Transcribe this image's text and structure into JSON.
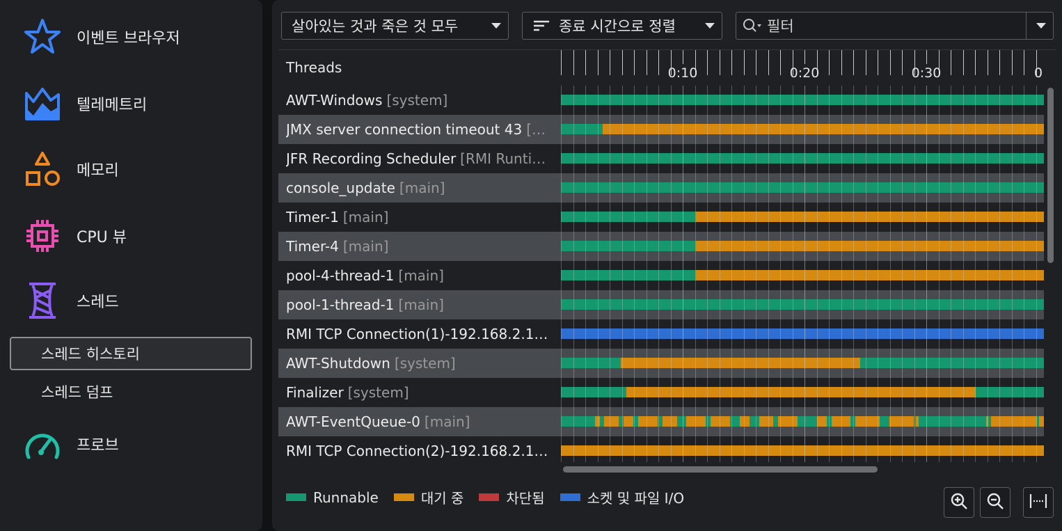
{
  "sidebar": {
    "items": [
      {
        "label": "이벤트 브라우저",
        "icon": "star-icon",
        "color": "#3b82f6"
      },
      {
        "label": "텔레메트리",
        "icon": "telemetry-icon",
        "color": "#3b82f6"
      },
      {
        "label": "메모리",
        "icon": "shapes-icon",
        "color": "#f08a1c"
      },
      {
        "label": "CPU 뷰",
        "icon": "cpu-chip-icon",
        "color": "#e94fb0"
      },
      {
        "label": "스레드",
        "icon": "thread-spool-icon",
        "color": "#8b5cf6"
      },
      {
        "label": "프로브",
        "icon": "gauge-icon",
        "color": "#20c0a8"
      }
    ],
    "sub_items": [
      {
        "label": "스레드 히스토리",
        "selected": true
      },
      {
        "label": "스레드 덤프",
        "selected": false
      }
    ]
  },
  "toolbar": {
    "state_filter": "살아있는 것과 죽은 것 모두",
    "sort": "종료 시간으로 정렬",
    "filter_placeholder": "필터"
  },
  "threads_header": "Threads",
  "timeline": {
    "tick_labels": [
      "0:10",
      "0:20",
      "0:30",
      "0"
    ],
    "tick_seconds": [
      10,
      20,
      30,
      40
    ]
  },
  "colors": {
    "runnable": "#16986e",
    "waiting": "#d68a10",
    "blocked": "#c0393b",
    "socket_io": "#2f6fd4"
  },
  "threads": [
    {
      "name": "AWT-Windows",
      "group": "[system]",
      "segments": [
        [
          "R",
          0,
          1
        ]
      ]
    },
    {
      "name": "JMX server connection timeout 43",
      "group": "[R…",
      "segments": [
        [
          "R",
          0,
          0.087
        ],
        [
          "W",
          0.087,
          1
        ]
      ]
    },
    {
      "name": "JFR Recording Scheduler",
      "group": "[RMI Runtim…",
      "segments": [
        [
          "R",
          0,
          1
        ]
      ]
    },
    {
      "name": "console_update",
      "group": "[main]",
      "segments": [
        [
          "R",
          0,
          1
        ]
      ]
    },
    {
      "name": "Timer-1",
      "group": "[main]",
      "segments": [
        [
          "R",
          0,
          0.279
        ],
        [
          "W",
          0.279,
          1
        ]
      ]
    },
    {
      "name": "Timer-4",
      "group": "[main]",
      "segments": [
        [
          "R",
          0,
          0.279
        ],
        [
          "W",
          0.279,
          1
        ]
      ]
    },
    {
      "name": "pool-4-thread-1",
      "group": "[main]",
      "segments": [
        [
          "R",
          0,
          0.279
        ],
        [
          "W",
          0.279,
          1
        ]
      ]
    },
    {
      "name": "pool-1-thread-1",
      "group": "[main]",
      "segments": [
        [
          "R",
          0,
          1
        ]
      ]
    },
    {
      "name": "RMI TCP Connection(1)-192.168.2.132 …",
      "group": "",
      "segments": [
        [
          "S",
          0,
          1
        ]
      ]
    },
    {
      "name": "AWT-Shutdown",
      "group": "[system]",
      "segments": [
        [
          "R",
          0,
          0.124
        ],
        [
          "W",
          0.124,
          0.619
        ],
        [
          "R",
          0.619,
          1
        ]
      ]
    },
    {
      "name": "Finalizer",
      "group": "[system]",
      "segments": [
        [
          "R",
          0,
          0.135
        ],
        [
          "W",
          0.135,
          0.859
        ],
        [
          "R",
          0.859,
          1
        ]
      ]
    },
    {
      "name": "AWT-EventQueue-0",
      "group": "[main]",
      "segments": [
        [
          "R",
          0,
          0.07
        ],
        [
          "W",
          0.07,
          0.08
        ],
        [
          "R",
          0.08,
          0.09
        ],
        [
          "W",
          0.09,
          0.12
        ],
        [
          "R",
          0.12,
          0.13
        ],
        [
          "W",
          0.13,
          0.15
        ],
        [
          "R",
          0.15,
          0.16
        ],
        [
          "W",
          0.16,
          0.2
        ],
        [
          "R",
          0.2,
          0.21
        ],
        [
          "W",
          0.21,
          0.24
        ],
        [
          "R",
          0.24,
          0.26
        ],
        [
          "W",
          0.26,
          0.3
        ],
        [
          "R",
          0.3,
          0.31
        ],
        [
          "W",
          0.31,
          0.35
        ],
        [
          "R",
          0.35,
          0.37
        ],
        [
          "W",
          0.37,
          0.39
        ],
        [
          "R",
          0.39,
          0.41
        ],
        [
          "W",
          0.41,
          0.44
        ],
        [
          "R",
          0.44,
          0.45
        ],
        [
          "W",
          0.45,
          0.49
        ],
        [
          "R",
          0.49,
          0.53
        ],
        [
          "W",
          0.53,
          0.55
        ],
        [
          "R",
          0.55,
          0.56
        ],
        [
          "W",
          0.56,
          0.6
        ],
        [
          "R",
          0.6,
          0.61
        ],
        [
          "W",
          0.61,
          0.66
        ],
        [
          "R",
          0.66,
          0.68
        ],
        [
          "W",
          0.68,
          0.73
        ],
        [
          "R",
          0.73,
          0.735
        ],
        [
          "W",
          0.735,
          0.74
        ],
        [
          "R",
          0.74,
          0.88
        ],
        [
          "W",
          0.88,
          0.885
        ],
        [
          "R",
          0.885,
          0.89
        ],
        [
          "W",
          0.89,
          0.985
        ],
        [
          "R",
          0.985,
          0.99
        ],
        [
          "W",
          0.99,
          1
        ]
      ]
    },
    {
      "name": "RMI TCP Connection(2)-192.168.2.132 …",
      "group": "",
      "segments": [
        [
          "W",
          0,
          1
        ]
      ]
    }
  ],
  "legend": [
    {
      "label": "Runnable",
      "color": "#16986e"
    },
    {
      "label": "대기 중",
      "color": "#d68a10"
    },
    {
      "label": "차단됨",
      "color": "#c0393b"
    },
    {
      "label": "소켓 및 파일 I/O",
      "color": "#2f6fd4"
    }
  ],
  "controls": {
    "zoom_in": "zoom-in-icon",
    "zoom_out": "zoom-out-icon",
    "fit": "fit-width-icon"
  }
}
